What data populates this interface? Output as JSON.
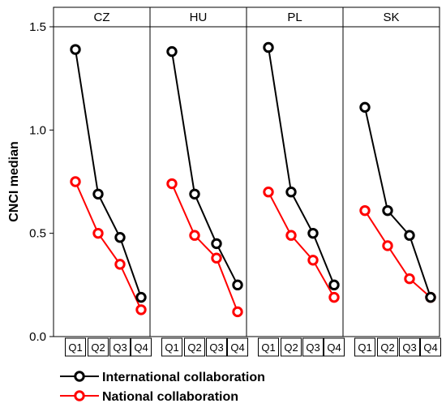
{
  "chart_data": {
    "type": "line",
    "ylabel": "CNCI median",
    "ylim": [
      0.0,
      1.5
    ],
    "yticks": [
      "0.0",
      "0.5",
      "1.0",
      "1.5"
    ],
    "ytick_values": [
      0.0,
      0.5,
      1.0,
      1.5
    ],
    "grid": false,
    "legend_position": "bottom",
    "categories": [
      "Q1",
      "Q2",
      "Q3",
      "Q4"
    ],
    "panels": [
      {
        "label": "CZ",
        "series": [
          {
            "name": "International collaboration",
            "values": [
              1.39,
              0.69,
              0.48,
              0.19
            ]
          },
          {
            "name": "National collaboration",
            "values": [
              0.75,
              0.5,
              0.35,
              0.13
            ]
          }
        ]
      },
      {
        "label": "HU",
        "series": [
          {
            "name": "International collaboration",
            "values": [
              1.38,
              0.69,
              0.45,
              0.25
            ]
          },
          {
            "name": "National collaboration",
            "values": [
              0.74,
              0.49,
              0.38,
              0.12
            ]
          }
        ]
      },
      {
        "label": "PL",
        "series": [
          {
            "name": "International collaboration",
            "values": [
              1.4,
              0.7,
              0.5,
              0.25
            ]
          },
          {
            "name": "National collaboration",
            "values": [
              0.7,
              0.49,
              0.37,
              0.19
            ]
          }
        ]
      },
      {
        "label": "SK",
        "series": [
          {
            "name": "International collaboration",
            "values": [
              1.11,
              0.61,
              0.49,
              0.19
            ]
          },
          {
            "name": "National collaboration",
            "values": [
              0.61,
              0.44,
              0.28,
              0.19
            ]
          }
        ]
      }
    ],
    "legend": [
      {
        "name": "International collaboration",
        "color": "#000000"
      },
      {
        "name": "National collaboration",
        "color": "#ff0000"
      }
    ]
  }
}
